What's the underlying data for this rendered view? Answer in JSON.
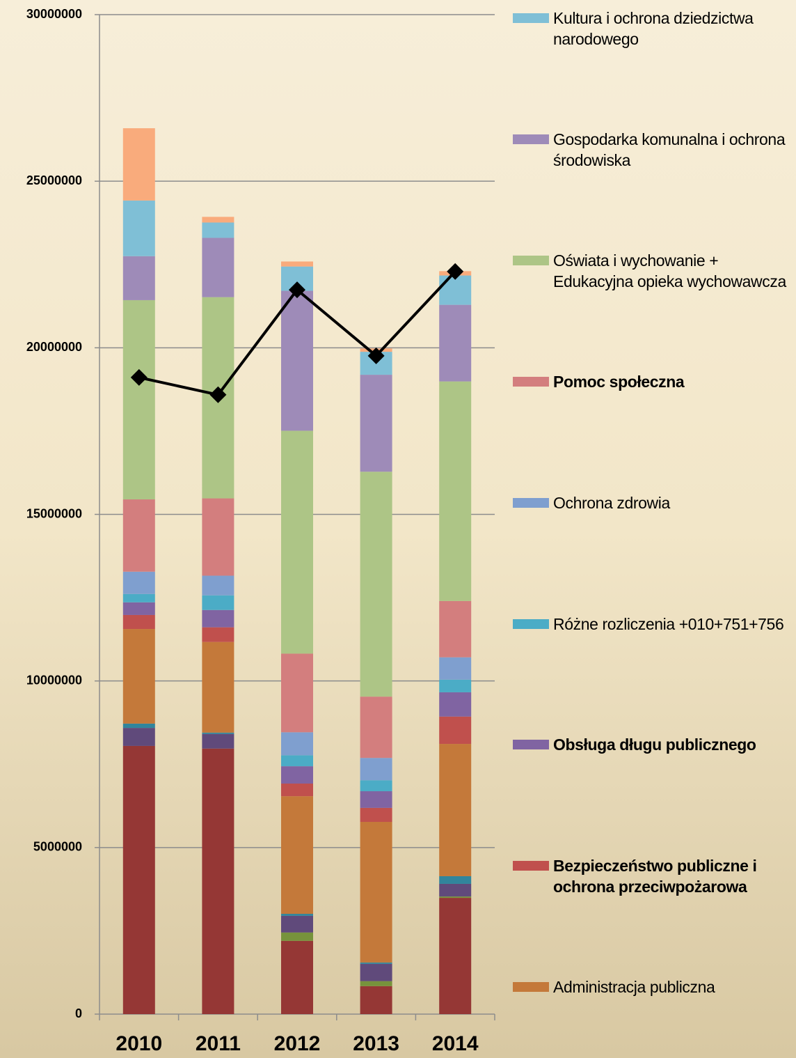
{
  "chart_data": {
    "type": "bar",
    "stacked": true,
    "categories": [
      "2010",
      "2011",
      "2012",
      "2013",
      "2014"
    ],
    "ylim": [
      0,
      30000000
    ],
    "yticks": [
      0,
      5000000,
      10000000,
      15000000,
      20000000,
      25000000,
      30000000
    ],
    "grid": true,
    "series": [
      {
        "color": "#953735",
        "values": [
          8050000,
          7970000,
          2200000,
          840000,
          3490000
        ]
      },
      {
        "color": "#77933c",
        "values": [
          0,
          0,
          250000,
          150000,
          40000
        ]
      },
      {
        "color": "#604a7b",
        "values": [
          540000,
          440000,
          500000,
          520000,
          380000
        ]
      },
      {
        "color": "#31859c",
        "values": [
          130000,
          40000,
          60000,
          40000,
          230000
        ]
      },
      {
        "name": "Administracja publiczna",
        "color": "#c4793a",
        "values": [
          2840000,
          2720000,
          3530000,
          4220000,
          3970000
        ]
      },
      {
        "name": "Bezpieczeństwo publiczne i ochrona przeciwpożarowa",
        "color": "#c0504d",
        "values": [
          420000,
          440000,
          380000,
          420000,
          820000
        ]
      },
      {
        "name": "Obsługa długu publicznego",
        "color": "#8064a2",
        "values": [
          380000,
          520000,
          520000,
          500000,
          730000
        ]
      },
      {
        "name": "Różne rozliczenia +010+751+756",
        "color": "#4bacc6",
        "values": [
          250000,
          440000,
          330000,
          330000,
          380000
        ]
      },
      {
        "name": "Ochrona zdrowia",
        "color": "#7f9fcf",
        "values": [
          670000,
          590000,
          690000,
          670000,
          670000
        ]
      },
      {
        "name": "Pomoc społeczna",
        "color": "#d37e7e",
        "values": [
          2170000,
          2320000,
          2360000,
          1840000,
          1690000
        ]
      },
      {
        "name": "Oświata i wychowanie + Edukacyjna opieka wychowawcza",
        "color": "#adc586",
        "values": [
          5980000,
          6040000,
          6690000,
          6750000,
          6590000
        ]
      },
      {
        "name": "Gospodarka komunalna i ochrona środowiska",
        "color": "#9e8bb8",
        "values": [
          1320000,
          1780000,
          4200000,
          2910000,
          2300000
        ]
      },
      {
        "name": "Kultura i ochrona dziedzictwa narodowego",
        "color": "#7fbfd6",
        "values": [
          1670000,
          460000,
          730000,
          690000,
          880000
        ]
      },
      {
        "color": "#f9ab7c",
        "values": [
          2170000,
          170000,
          150000,
          100000,
          130000
        ]
      },
      {
        "type": "line",
        "color": "#000000",
        "values": [
          19110000,
          18590000,
          21740000,
          19760000,
          22290000
        ]
      }
    ]
  }
}
